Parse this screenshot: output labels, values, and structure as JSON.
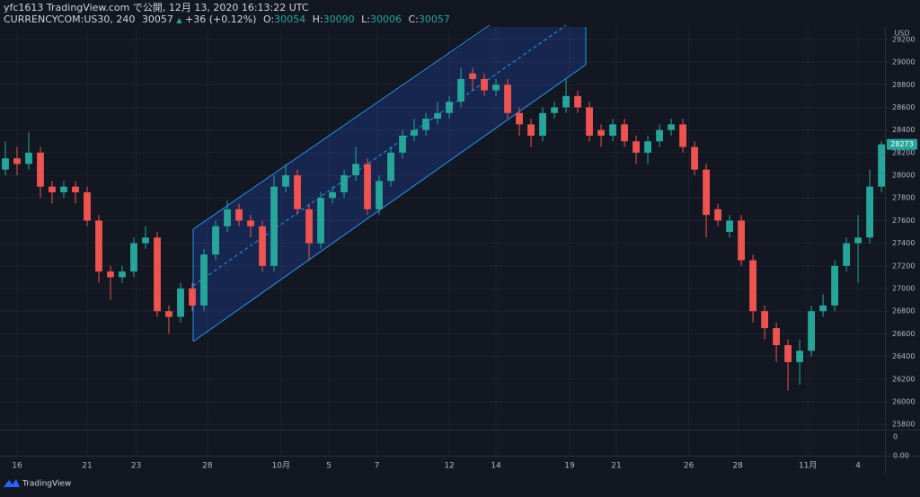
{
  "header": {
    "publisher": "yfc1613 TradingView.com で公開, 12月 13, 2020 16:13:22 UTC",
    "symbol": "CURRENCYCOM:US30, 240",
    "last": "30057",
    "arrow": "▲",
    "change": "+36 (+0.12%)",
    "open_label": "O:",
    "open": "30054",
    "high_label": "H:",
    "high": "30090",
    "low_label": "L:",
    "low": "30006",
    "close_label": "C:",
    "close": "30057"
  },
  "currency": "USD",
  "lower_pane_labels": [
    "0",
    "0.00"
  ],
  "footer": "TradingView",
  "chart_data": {
    "type": "candlestick",
    "x": [
      0,
      1,
      2,
      3,
      4,
      5,
      6,
      7,
      8,
      9,
      10,
      11,
      12,
      13,
      14,
      15,
      16,
      17,
      18,
      19,
      20,
      21,
      22,
      23,
      24,
      25,
      26,
      27,
      28,
      29,
      30,
      31,
      32,
      33,
      34,
      35,
      36,
      37,
      38,
      39,
      40,
      41,
      42,
      43,
      44,
      45,
      46,
      47,
      48,
      49,
      50,
      51,
      52,
      53,
      54,
      55,
      56,
      57,
      58,
      59,
      60,
      61,
      62,
      63,
      64,
      65,
      66,
      67,
      68,
      69,
      70,
      71,
      72,
      73,
      74,
      75
    ],
    "open": [
      28050,
      28150,
      28100,
      28200,
      27900,
      27850,
      27900,
      27850,
      27600,
      27150,
      27100,
      27150,
      27400,
      27450,
      26800,
      26750,
      27000,
      26850,
      27300,
      27550,
      27700,
      27600,
      27550,
      27200,
      27900,
      28000,
      27700,
      27400,
      27800,
      27850,
      28000,
      28100,
      27700,
      27950,
      28200,
      28350,
      28400,
      28500,
      28550,
      28650,
      28900,
      28850,
      28750,
      28800,
      28550,
      28450,
      28350,
      28550,
      28600,
      28700,
      28600,
      28400,
      28350,
      28450,
      28300,
      28200,
      28300,
      28400,
      28450,
      28250,
      28050,
      27700,
      27500,
      27600,
      27250,
      26800,
      26650,
      26500,
      26350,
      26450,
      26800,
      26850,
      27200,
      27400,
      27450,
      27900
    ],
    "high": [
      28300,
      28250,
      28380,
      28250,
      27950,
      27950,
      27950,
      27900,
      27650,
      27200,
      27200,
      27450,
      27550,
      27500,
      26850,
      27050,
      27050,
      27350,
      27600,
      27780,
      27750,
      27650,
      27600,
      28000,
      28100,
      28050,
      27750,
      27850,
      27900,
      28050,
      28250,
      28150,
      28000,
      28250,
      28400,
      28500,
      28550,
      28650,
      28700,
      28950,
      28950,
      28900,
      28850,
      28850,
      28600,
      28500,
      28600,
      28650,
      28850,
      28750,
      28650,
      28450,
      28500,
      28500,
      28350,
      28350,
      28450,
      28500,
      28500,
      28300,
      28100,
      27750,
      27650,
      27650,
      27300,
      26850,
      26700,
      26550,
      26550,
      26850,
      26950,
      27250,
      27450,
      27650,
      28050,
      28300
    ],
    "low": [
      28000,
      28000,
      28050,
      27800,
      27750,
      27800,
      27750,
      27550,
      27050,
      26900,
      27050,
      27100,
      27350,
      26750,
      26600,
      26700,
      26800,
      26800,
      27250,
      27500,
      27550,
      27450,
      27150,
      27150,
      27850,
      27650,
      27250,
      27350,
      27750,
      27800,
      27950,
      27650,
      27650,
      27900,
      28150,
      28300,
      28350,
      28450,
      28500,
      28600,
      28750,
      28700,
      28700,
      28500,
      28350,
      28250,
      28300,
      28500,
      28550,
      28550,
      28300,
      28250,
      28300,
      28250,
      28100,
      28100,
      28250,
      28350,
      28200,
      28000,
      27450,
      27550,
      27450,
      27200,
      26700,
      26550,
      26350,
      26100,
      26150,
      26400,
      26750,
      26800,
      27150,
      27050,
      27400,
      27850
    ],
    "close": [
      28150,
      28100,
      28200,
      27900,
      27850,
      27900,
      27850,
      27600,
      27150,
      27100,
      27150,
      27400,
      27450,
      26800,
      26750,
      27000,
      26850,
      27300,
      27550,
      27700,
      27600,
      27550,
      27200,
      27900,
      28000,
      27700,
      27400,
      27800,
      27850,
      28000,
      28100,
      27700,
      27950,
      28200,
      28350,
      28400,
      28500,
      28550,
      28650,
      28850,
      28850,
      28750,
      28800,
      28550,
      28450,
      28350,
      28550,
      28600,
      28700,
      28600,
      28350,
      28350,
      28450,
      28300,
      28200,
      28300,
      28400,
      28450,
      28250,
      28050,
      27650,
      27600,
      27600,
      27250,
      26800,
      26650,
      26500,
      26350,
      26450,
      26800,
      26850,
      27200,
      27400,
      27450,
      27900,
      28273
    ],
    "up_color": "#26a69a",
    "down_color": "#ef5350",
    "xlim": [
      -0.46,
      75.3
    ],
    "xticks": [
      {
        "value": 1.0,
        "label": "16"
      },
      {
        "value": 7.0,
        "label": "21"
      },
      {
        "value": 11.2,
        "label": "23"
      },
      {
        "value": 17.3,
        "label": "28"
      },
      {
        "value": 23.6,
        "label": "10月"
      },
      {
        "value": 27.7,
        "label": "5"
      },
      {
        "value": 31.8,
        "label": "7"
      },
      {
        "value": 38.0,
        "label": "12"
      },
      {
        "value": 42.0,
        "label": "14"
      },
      {
        "value": 48.3,
        "label": "19"
      },
      {
        "value": 52.3,
        "label": "21"
      },
      {
        "value": 58.5,
        "label": "26"
      },
      {
        "value": 62.7,
        "label": "28"
      },
      {
        "value": 68.7,
        "label": "11月"
      },
      {
        "value": 73.0,
        "label": "4"
      }
    ],
    "ylim": [
      25754,
      29310
    ],
    "yticks": [
      25800,
      26000,
      26200,
      26400,
      26600,
      26800,
      27000,
      27200,
      27400,
      27600,
      27800,
      28000,
      28200,
      28400,
      28600,
      28800,
      29000,
      29200
    ],
    "grid": true
  }
}
